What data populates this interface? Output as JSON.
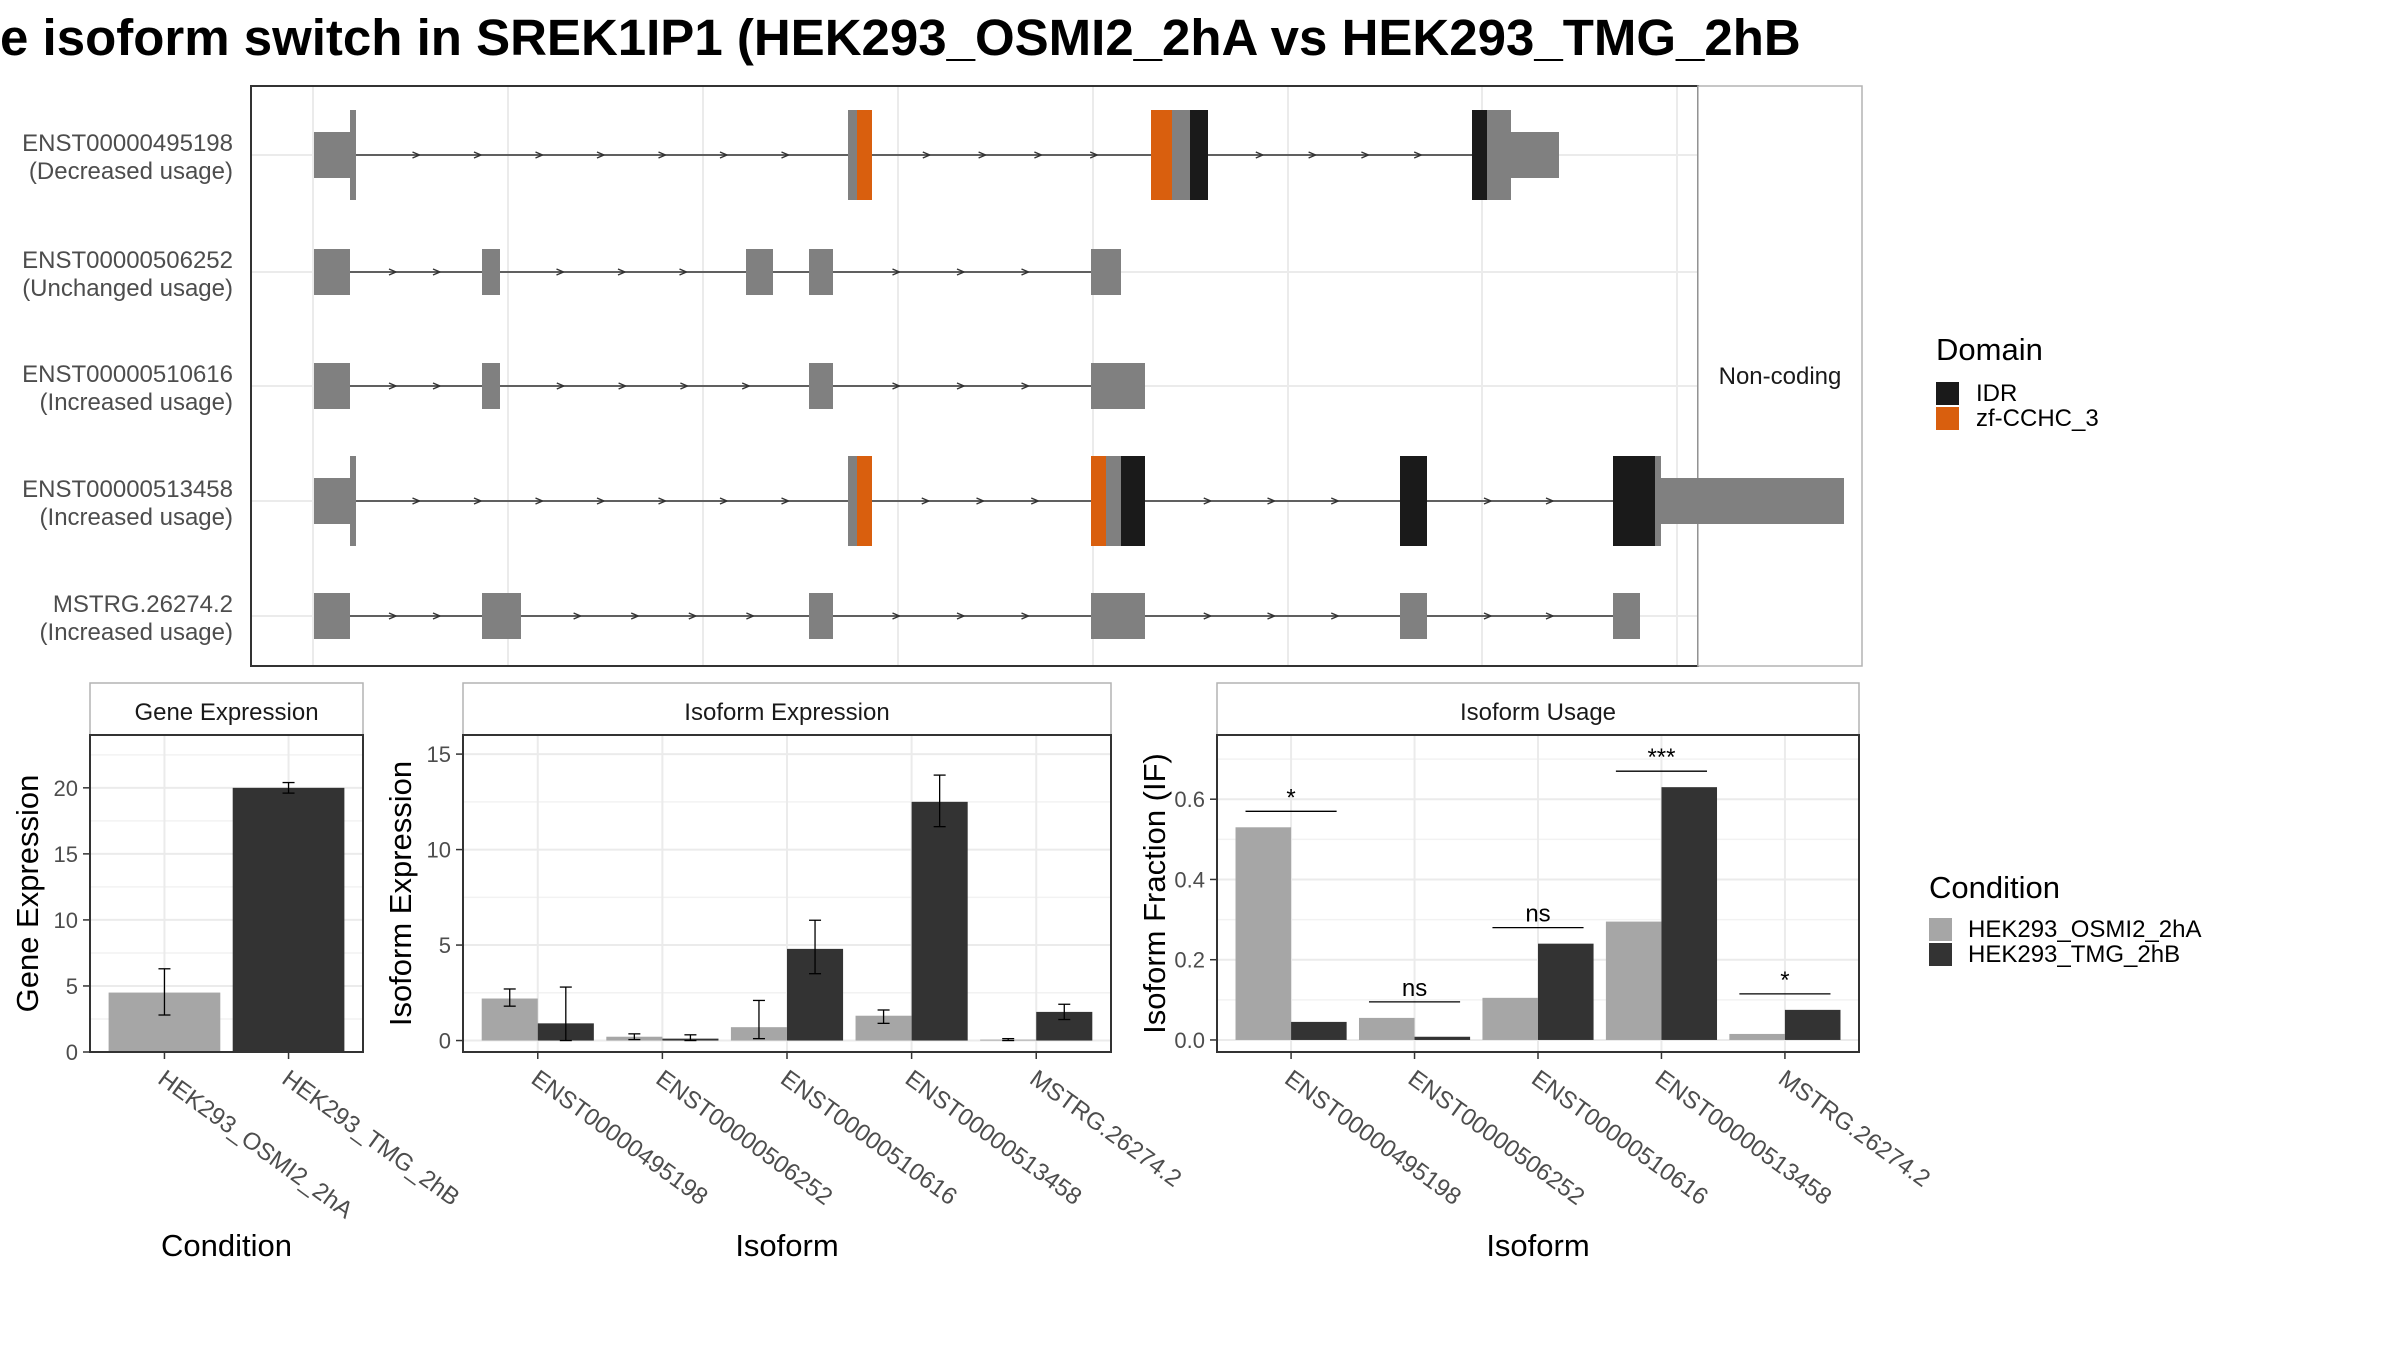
{
  "title": "e isoform switch in SREK1IP1 (HEK293_OSMI2_2hA vs HEK293_TMG_2hB",
  "colors": {
    "exon": "#808080",
    "idr": "#1a1a1a",
    "zf": "#d95f0e",
    "cond_a": "#a6a6a6",
    "cond_b": "#333333",
    "grid": "#ebebeb",
    "panel_border": "#333333",
    "strip_border": "#b3b3b3"
  },
  "structure": {
    "strip_label": "Non-coding",
    "isoforms": [
      {
        "id": "ENST00000495198",
        "usage": "(Decreased usage)",
        "exons": [
          {
            "s": 0,
            "e": 12,
            "t": "utr"
          },
          {
            "s": 12,
            "e": 14,
            "t": "cds"
          },
          {
            "s": 178,
            "e": 181,
            "t": "cds"
          },
          {
            "s": 181,
            "e": 186,
            "t": "zf"
          },
          {
            "s": 279,
            "e": 286,
            "t": "zf"
          },
          {
            "s": 286,
            "e": 292,
            "t": "cds"
          },
          {
            "s": 292,
            "e": 298,
            "t": "idr"
          },
          {
            "s": 386,
            "e": 391,
            "t": "idr"
          },
          {
            "s": 391,
            "e": 399,
            "t": "cds"
          },
          {
            "s": 399,
            "e": 415,
            "t": "utr"
          }
        ]
      },
      {
        "id": "ENST00000506252",
        "usage": "(Unchanged usage)",
        "exons": [
          {
            "s": 0,
            "e": 12,
            "t": "utr"
          },
          {
            "s": 56,
            "e": 62,
            "t": "utr"
          },
          {
            "s": 144,
            "e": 153,
            "t": "utr"
          },
          {
            "s": 165,
            "e": 173,
            "t": "utr"
          },
          {
            "s": 259,
            "e": 269,
            "t": "utr"
          }
        ]
      },
      {
        "id": "ENST00000510616",
        "usage": "(Increased usage)",
        "exons": [
          {
            "s": 0,
            "e": 12,
            "t": "utr"
          },
          {
            "s": 56,
            "e": 62,
            "t": "utr"
          },
          {
            "s": 165,
            "e": 173,
            "t": "utr"
          },
          {
            "s": 259,
            "e": 277,
            "t": "utr"
          }
        ]
      },
      {
        "id": "ENST00000513458",
        "usage": "(Increased usage)",
        "exons": [
          {
            "s": 0,
            "e": 12,
            "t": "utr"
          },
          {
            "s": 12,
            "e": 14,
            "t": "cds"
          },
          {
            "s": 178,
            "e": 181,
            "t": "cds"
          },
          {
            "s": 181,
            "e": 186,
            "t": "zf"
          },
          {
            "s": 259,
            "e": 264,
            "t": "zf"
          },
          {
            "s": 264,
            "e": 269,
            "t": "cds"
          },
          {
            "s": 269,
            "e": 277,
            "t": "idr"
          },
          {
            "s": 362,
            "e": 371,
            "t": "idr"
          },
          {
            "s": 433,
            "e": 447,
            "t": "idr"
          },
          {
            "s": 447,
            "e": 449,
            "t": "cds"
          },
          {
            "s": 449,
            "e": 510,
            "t": "utr"
          }
        ]
      },
      {
        "id": "MSTRG.26274.2",
        "usage": "(Increased usage)",
        "exons": [
          {
            "s": 0,
            "e": 12,
            "t": "utr"
          },
          {
            "s": 56,
            "e": 69,
            "t": "utr"
          },
          {
            "s": 165,
            "e": 173,
            "t": "utr"
          },
          {
            "s": 259,
            "e": 277,
            "t": "utr"
          },
          {
            "s": 362,
            "e": 371,
            "t": "utr"
          },
          {
            "s": 433,
            "e": 442,
            "t": "utr"
          }
        ]
      }
    ],
    "legend_title": "Domain",
    "legend_items": [
      {
        "label": "IDR",
        "color": "#1a1a1a"
      },
      {
        "label": "zf-CCHC_3",
        "color": "#d95f0e"
      }
    ]
  },
  "chart_data": [
    {
      "type": "bar",
      "panel_title": "Gene Expression",
      "xlabel": "Condition",
      "ylabel": "Gene Expression",
      "categories": [
        "HEK293_OSMI2_2hA",
        "HEK293_TMG_2hB"
      ],
      "values": [
        4.5,
        20.0
      ],
      "errors": [
        [
          2.8,
          6.3
        ],
        [
          19.6,
          20.4
        ]
      ],
      "ylim": [
        0,
        24
      ],
      "yticks": [
        0,
        5,
        10,
        15,
        20
      ],
      "ytick_labels": [
        "0",
        "5",
        "10",
        "15",
        "20"
      ]
    },
    {
      "type": "bar",
      "panel_title": "Isoform Expression",
      "xlabel": "Isoform",
      "ylabel": "Isoform Expression",
      "categories": [
        "ENST00000495198",
        "ENST00000506252",
        "ENST00000510616",
        "ENST00000513458",
        "MSTRG.26274.2"
      ],
      "series": [
        {
          "name": "HEK293_OSMI2_2hA",
          "values": [
            2.2,
            0.2,
            0.7,
            1.3,
            0.05
          ],
          "errors": [
            [
              1.8,
              2.7
            ],
            [
              0.05,
              0.35
            ],
            [
              0.1,
              2.1
            ],
            [
              0.9,
              1.6
            ],
            [
              0.0,
              0.1
            ]
          ]
        },
        {
          "name": "HEK293_TMG_2hB",
          "values": [
            0.9,
            0.1,
            4.8,
            12.5,
            1.5
          ],
          "errors": [
            [
              0.0,
              2.8
            ],
            [
              0.0,
              0.3
            ],
            [
              3.5,
              6.3
            ],
            [
              11.2,
              13.9
            ],
            [
              1.1,
              1.9
            ]
          ]
        }
      ],
      "ylim": [
        -0.6,
        16
      ],
      "yticks": [
        0,
        5,
        10,
        15
      ],
      "ytick_labels": [
        "0",
        "5",
        "10",
        "15"
      ]
    },
    {
      "type": "bar",
      "panel_title": "Isoform Usage",
      "xlabel": "Isoform",
      "ylabel": "Isoform Fraction (IF)",
      "categories": [
        "ENST00000495198",
        "ENST00000506252",
        "ENST00000510616",
        "ENST00000513458",
        "MSTRG.26274.2"
      ],
      "series": [
        {
          "name": "HEK293_OSMI2_2hA",
          "values": [
            0.53,
            0.055,
            0.105,
            0.295,
            0.015
          ]
        },
        {
          "name": "HEK293_TMG_2hB",
          "values": [
            0.045,
            0.008,
            0.24,
            0.63,
            0.075
          ]
        }
      ],
      "significance": [
        "*",
        "ns",
        "ns",
        "***",
        "*"
      ],
      "ylim": [
        -0.03,
        0.76
      ],
      "yticks": [
        0,
        0.2,
        0.4,
        0.6
      ],
      "ytick_labels": [
        "0.0",
        "0.2",
        "0.4",
        "0.6"
      ]
    }
  ],
  "condition_legend": {
    "title": "Condition",
    "items": [
      {
        "label": "HEK293_OSMI2_2hA",
        "color": "#a6a6a6"
      },
      {
        "label": "HEK293_TMG_2hB",
        "color": "#333333"
      }
    ]
  }
}
